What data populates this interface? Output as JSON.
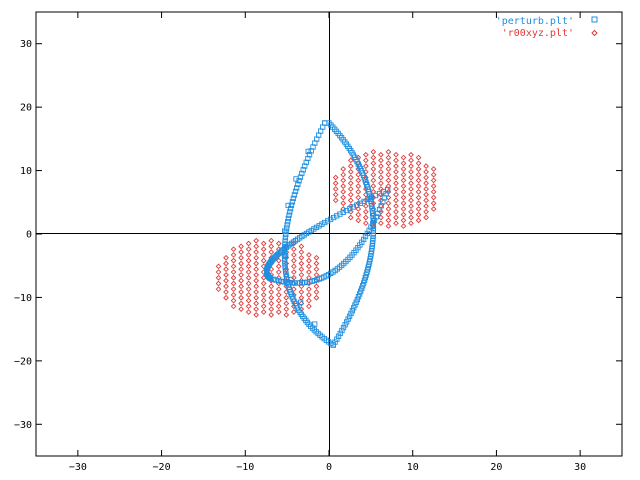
{
  "chart_data": {
    "type": "scatter",
    "title": "",
    "xlabel": "",
    "ylabel": "",
    "xlim": [
      -35,
      35
    ],
    "ylim": [
      -35,
      35
    ],
    "xticks": [
      -30,
      -20,
      -10,
      0,
      10,
      20,
      30
    ],
    "yticks": [
      -30,
      -20,
      -10,
      0,
      10,
      20,
      30
    ],
    "xtick_labels": [
      "−30",
      "−20",
      "−10",
      "0",
      "10",
      "20",
      "30"
    ],
    "ytick_labels": [
      "−30",
      "−20",
      "−10",
      "0",
      "10",
      "20",
      "30"
    ],
    "zero_axes": true,
    "grid": false,
    "legend_position": "top-right",
    "series": [
      {
        "name": "'perturb.plt'",
        "marker": "square",
        "color": "#1f8fe0",
        "components": [
          {
            "kind": "arc",
            "from": [
              0,
              17.5
            ],
            "via": [
              5.3,
              1.5
            ],
            "to": [
              0.5,
              -17.5
            ],
            "count": 90
          },
          {
            "kind": "arc",
            "from": [
              -0.5,
              17.5
            ],
            "via": [
              -5.3,
              -1.5
            ],
            "to": [
              0.5,
              -17.5
            ],
            "count": 10
          },
          {
            "kind": "arc",
            "from": [
              -7,
              -7
            ],
            "via": [
              -5,
              -2
            ],
            "to": [
              7,
              7
            ],
            "count": 70
          },
          {
            "kind": "arc",
            "from": [
              -7,
              -7
            ],
            "via": [
              1,
              -5.5
            ],
            "to": [
              7,
              7
            ],
            "count": 55
          },
          {
            "kind": "arc",
            "from": [
              -0.5,
              17.5
            ],
            "via": [
              -5.3,
              -4
            ],
            "to": [
              0.5,
              -17.5
            ],
            "count": 80
          }
        ]
      },
      {
        "name": "'r00xyz.plt'",
        "marker": "diamond",
        "color": "#e03a3a",
        "clusters": [
          {
            "center": [
              7,
              7
            ],
            "radius": 6.2,
            "spacing": 0.9
          },
          {
            "center": [
              -7,
              -7
            ],
            "radius": 6.2,
            "spacing": 0.9
          }
        ]
      }
    ]
  }
}
